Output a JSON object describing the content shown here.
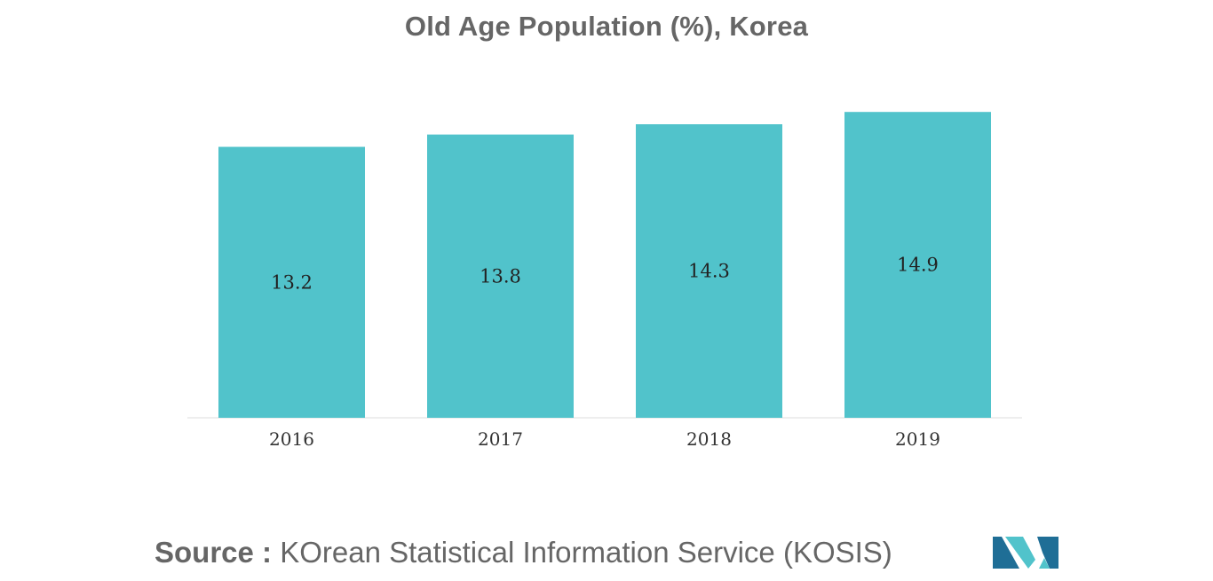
{
  "chart_data": {
    "type": "bar",
    "title": "Old Age Population (%), Korea",
    "categories": [
      "2016",
      "2017",
      "2018",
      "2019"
    ],
    "values": [
      13.2,
      13.8,
      14.3,
      14.9
    ],
    "data_labels": [
      "13.2",
      "13.8",
      "14.3",
      "14.9"
    ],
    "xlabel": "",
    "ylabel": "",
    "ylim": [
      0,
      15.6
    ],
    "grid": false,
    "legend": "none",
    "bar_color": "#51C3CB"
  },
  "source": {
    "prefix": "Source :",
    "text": " KOrean Statistical Information Service (KOSIS)"
  },
  "colors": {
    "title": "#666666",
    "logo_dark": "#1F6E96",
    "logo_light": "#51C3CB"
  },
  "logo": {
    "icon": "mordor-logo-icon"
  }
}
